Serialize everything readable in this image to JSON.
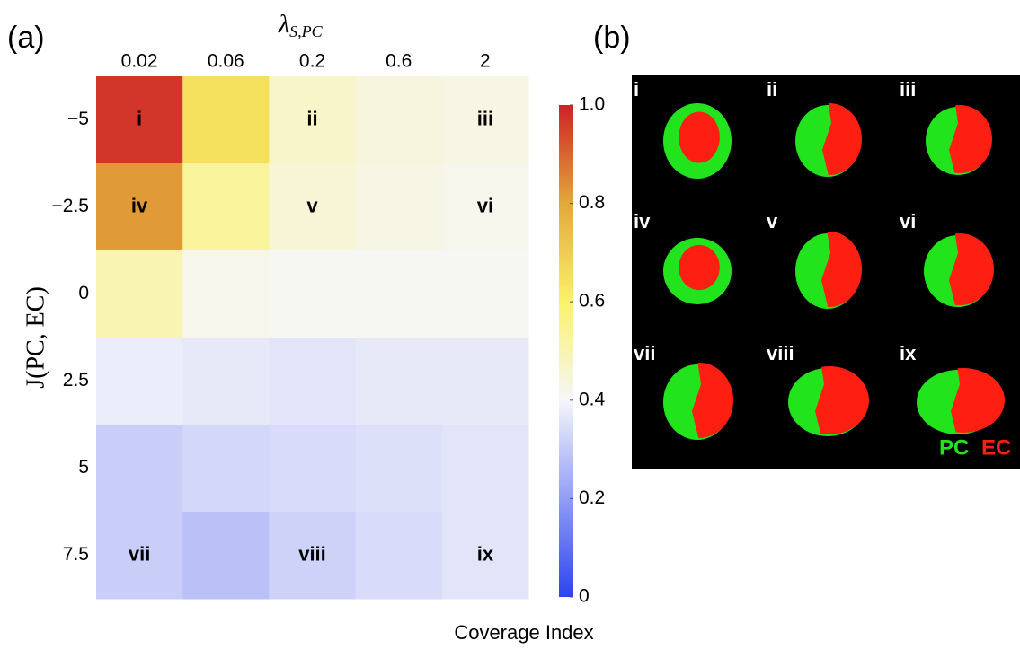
{
  "chart_data": {
    "type": "heatmap",
    "panel_label": "(a)",
    "x_label": "λ",
    "x_label_sub": "S,PC",
    "y_label": "J(PC, EC)",
    "x_categories": [
      "0.02",
      "0.06",
      "0.2",
      "0.6",
      "2"
    ],
    "y_categories": [
      "−5",
      "−2.5",
      "0",
      "2.5",
      "5",
      "7.5"
    ],
    "values": [
      [
        0.97,
        0.65,
        0.47,
        0.44,
        0.43
      ],
      [
        0.82,
        0.53,
        0.45,
        0.43,
        0.42
      ],
      [
        0.5,
        0.42,
        0.41,
        0.41,
        0.41
      ],
      [
        0.38,
        0.37,
        0.36,
        0.37,
        0.37
      ],
      [
        0.31,
        0.33,
        0.34,
        0.35,
        0.36
      ],
      [
        0.31,
        0.28,
        0.32,
        0.34,
        0.36
      ]
    ],
    "cell_labels": [
      [
        "i",
        null,
        "ii",
        null,
        "iii"
      ],
      [
        "iv",
        null,
        "v",
        null,
        "vi"
      ],
      [
        null,
        null,
        null,
        null,
        null
      ],
      [
        null,
        null,
        null,
        null,
        null
      ],
      [
        null,
        null,
        null,
        null,
        null
      ],
      [
        "vii",
        null,
        "viii",
        null,
        "ix"
      ]
    ],
    "colorbar_label": "Coverage Index",
    "zlim": [
      0,
      1
    ],
    "zticks": [
      0,
      0.2,
      0.4,
      0.6,
      0.8,
      {
        "value": 1,
        "label": "1.0"
      }
    ],
    "colormap": [
      {
        "value": 0,
        "color": "#2c44f0"
      },
      {
        "value": 0.4,
        "color": "#f6f6fa"
      },
      {
        "value": 0.6,
        "color": "#fbf26a"
      },
      {
        "value": 0.8,
        "color": "#e2a83a"
      },
      {
        "value": 1,
        "color": "#cf2127"
      }
    ]
  },
  "panel_b": {
    "panel_label": "(b)",
    "labels": [
      "i",
      "ii",
      "iii",
      "iv",
      "v",
      "vi",
      "vii",
      "viii",
      "ix"
    ],
    "legend": [
      {
        "text": "PC",
        "color": "#22e41c"
      },
      {
        "text": "EC",
        "color": "#ff1e12"
      }
    ]
  }
}
